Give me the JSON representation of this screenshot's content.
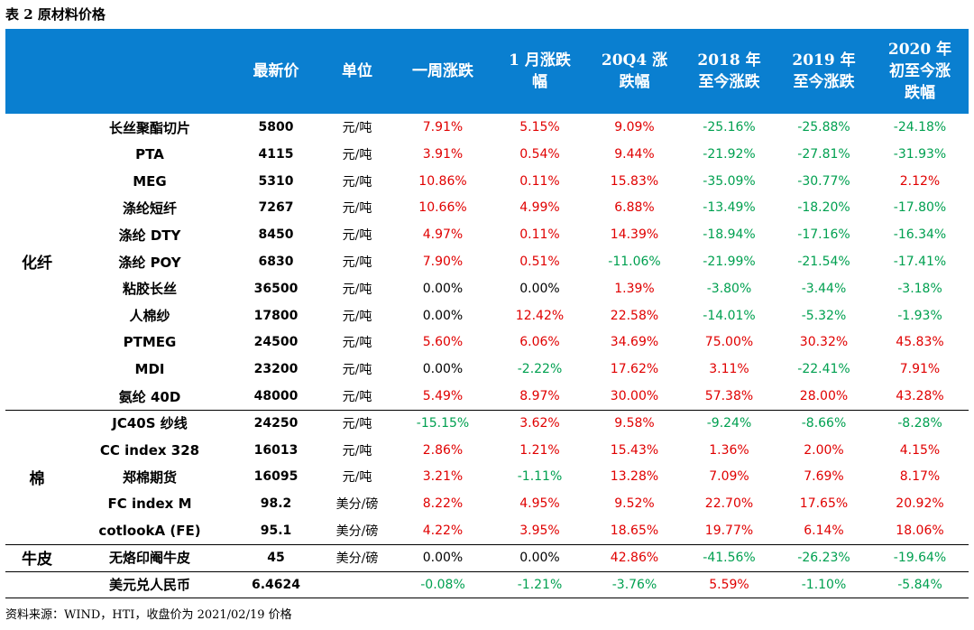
{
  "title": "表 2 原材料价格",
  "headers": [
    "最新价",
    "单位",
    "一周涨跌",
    "1 月涨跌\n幅",
    "20Q4 涨\n跌幅",
    "2018 年\n至今涨跌",
    "2019 年\n至今涨跌",
    "2020 年\n初至今涨\n跌幅"
  ],
  "categories": [
    "化纤",
    "棉",
    "牛皮"
  ],
  "rows": [
    {
      "name": "长丝聚酯切片",
      "price": "5800",
      "unit": "元/吨",
      "vals": [
        "7.91%",
        "5.15%",
        "9.09%",
        "-25.16%",
        "-25.88%",
        "-24.18%"
      ],
      "cls": [
        "pos",
        "pos",
        "pos",
        "neg",
        "neg",
        "neg"
      ]
    },
    {
      "name": "PTA",
      "price": "4115",
      "unit": "元/吨",
      "vals": [
        "3.91%",
        "0.54%",
        "9.44%",
        "-21.92%",
        "-27.81%",
        "-31.93%"
      ],
      "cls": [
        "pos",
        "pos",
        "pos",
        "neg",
        "neg",
        "neg"
      ]
    },
    {
      "name": "MEG",
      "price": "5310",
      "unit": "元/吨",
      "vals": [
        "10.86%",
        "0.11%",
        "15.83%",
        "-35.09%",
        "-30.77%",
        "2.12%"
      ],
      "cls": [
        "pos",
        "pos",
        "pos",
        "neg",
        "neg",
        "pos"
      ]
    },
    {
      "name": "涤纶短纤",
      "price": "7267",
      "unit": "元/吨",
      "vals": [
        "10.66%",
        "4.99%",
        "6.88%",
        "-13.49%",
        "-18.20%",
        "-17.80%"
      ],
      "cls": [
        "pos",
        "pos",
        "pos",
        "neg",
        "neg",
        "neg"
      ]
    },
    {
      "name": "涤纶 DTY",
      "price": "8450",
      "unit": "元/吨",
      "vals": [
        "4.97%",
        "0.11%",
        "14.39%",
        "-18.94%",
        "-17.16%",
        "-16.34%"
      ],
      "cls": [
        "pos",
        "pos",
        "pos",
        "neg",
        "neg",
        "neg"
      ]
    },
    {
      "name": "涤纶 POY",
      "price": "6830",
      "unit": "元/吨",
      "vals": [
        "7.90%",
        "0.51%",
        "-11.06%",
        "-21.99%",
        "-21.54%",
        "-17.41%"
      ],
      "cls": [
        "pos",
        "pos",
        "neg",
        "neg",
        "neg",
        "neg"
      ]
    },
    {
      "name": "粘胶长丝",
      "price": "36500",
      "unit": "元/吨",
      "vals": [
        "0.00%",
        "0.00%",
        "1.39%",
        "-3.80%",
        "-3.44%",
        "-3.18%"
      ],
      "cls": [
        "zero",
        "zero",
        "pos",
        "neg",
        "neg",
        "neg"
      ]
    },
    {
      "name": "人棉纱",
      "price": "17800",
      "unit": "元/吨",
      "vals": [
        "0.00%",
        "12.42%",
        "22.58%",
        "-14.01%",
        "-5.32%",
        "-1.93%"
      ],
      "cls": [
        "zero",
        "pos",
        "pos",
        "neg",
        "neg",
        "neg"
      ]
    },
    {
      "name": "PTMEG",
      "price": "24500",
      "unit": "元/吨",
      "vals": [
        "5.60%",
        "6.06%",
        "34.69%",
        "75.00%",
        "30.32%",
        "45.83%"
      ],
      "cls": [
        "pos",
        "pos",
        "pos",
        "pos",
        "pos",
        "pos"
      ]
    },
    {
      "name": "MDI",
      "price": "23200",
      "unit": "元/吨",
      "vals": [
        "0.00%",
        "-2.22%",
        "17.62%",
        "3.11%",
        "-22.41%",
        "7.91%"
      ],
      "cls": [
        "zero",
        "neg",
        "pos",
        "pos",
        "neg",
        "pos"
      ]
    },
    {
      "name": "氨纶 40D",
      "price": "48000",
      "unit": "元/吨",
      "vals": [
        "5.49%",
        "8.97%",
        "30.00%",
        "57.38%",
        "28.00%",
        "43.28%"
      ],
      "cls": [
        "pos",
        "pos",
        "pos",
        "pos",
        "pos",
        "pos"
      ]
    },
    {
      "name": "JC40S 纱线",
      "price": "24250",
      "unit": "元/吨",
      "vals": [
        "-15.15%",
        "3.62%",
        "9.58%",
        "-9.24%",
        "-8.66%",
        "-8.28%"
      ],
      "cls": [
        "neg",
        "pos",
        "pos",
        "neg",
        "neg",
        "neg"
      ]
    },
    {
      "name": "CC index 328",
      "price": "16013",
      "unit": "元/吨",
      "vals": [
        "2.86%",
        "1.21%",
        "15.43%",
        "1.36%",
        "2.00%",
        "4.15%"
      ],
      "cls": [
        "pos",
        "pos",
        "pos",
        "pos",
        "pos",
        "pos"
      ]
    },
    {
      "name": "郑棉期货",
      "price": "16095",
      "unit": "元/吨",
      "vals": [
        "3.21%",
        "-1.11%",
        "13.28%",
        "7.09%",
        "7.69%",
        "8.17%"
      ],
      "cls": [
        "pos",
        "neg",
        "pos",
        "pos",
        "pos",
        "pos"
      ]
    },
    {
      "name": "FC index M",
      "price": "98.2",
      "unit": "美分/磅",
      "vals": [
        "8.22%",
        "4.95%",
        "9.52%",
        "22.70%",
        "17.65%",
        "20.92%"
      ],
      "cls": [
        "pos",
        "pos",
        "pos",
        "pos",
        "pos",
        "pos"
      ]
    },
    {
      "name": "cotlookA (FE)",
      "price": "95.1",
      "unit": "美分/磅",
      "vals": [
        "4.22%",
        "3.95%",
        "18.65%",
        "19.77%",
        "6.14%",
        "18.06%"
      ],
      "cls": [
        "pos",
        "pos",
        "pos",
        "pos",
        "pos",
        "pos"
      ]
    },
    {
      "name": "无烙印阉牛皮",
      "price": "45",
      "unit": "美分/磅",
      "vals": [
        "0.00%",
        "0.00%",
        "42.86%",
        "-41.56%",
        "-26.23%",
        "-19.64%"
      ],
      "cls": [
        "zero",
        "zero",
        "pos",
        "neg",
        "neg",
        "neg"
      ]
    },
    {
      "name": "美元兑人民币",
      "price": "6.4624",
      "unit": "",
      "vals": [
        "-0.08%",
        "-1.21%",
        "-3.76%",
        "5.59%",
        "-1.10%",
        "-5.84%"
      ],
      "cls": [
        "neg",
        "neg",
        "neg",
        "pos",
        "neg",
        "neg"
      ]
    }
  ],
  "source": "资料来源：WIND，HTI，收盘价为 2021/02/19 价格"
}
